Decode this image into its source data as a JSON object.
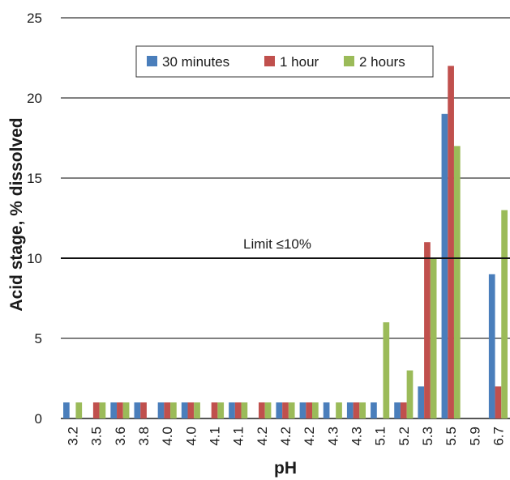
{
  "chart_data": {
    "type": "bar",
    "title": "",
    "xlabel": "pH",
    "ylabel": "Acid stage, % dissolved",
    "ylim": [
      0,
      25
    ],
    "yticks": [
      0,
      5,
      10,
      15,
      20,
      25
    ],
    "grid": true,
    "legend_position": "top-right",
    "categories": [
      "3.2",
      "3.5",
      "3.6",
      "3.8",
      "4.0",
      "4.0",
      "4.1",
      "4.1",
      "4.2",
      "4.2",
      "4.2",
      "4.3",
      "4.3",
      "5.1",
      "5.2",
      "5.3",
      "5.5",
      "5.9",
      "6.7"
    ],
    "series": [
      {
        "name": "30 minutes",
        "color": "#4a7ebb",
        "values": [
          1,
          0,
          1,
          1,
          1,
          1,
          0,
          1,
          0,
          1,
          1,
          1,
          1,
          1,
          1,
          2,
          19,
          0,
          9
        ]
      },
      {
        "name": "1 hour",
        "color": "#c0504d",
        "values": [
          0,
          1,
          1,
          1,
          1,
          1,
          1,
          1,
          1,
          1,
          1,
          0,
          1,
          0,
          1,
          11,
          22,
          0,
          2
        ]
      },
      {
        "name": "2 hours",
        "color": "#9bbb59",
        "values": [
          1,
          1,
          1,
          0,
          1,
          1,
          1,
          1,
          1,
          1,
          1,
          1,
          1,
          6,
          3,
          10,
          17,
          0,
          13
        ]
      }
    ],
    "reference_line": {
      "value": 10,
      "label": "Limit ≤10%"
    }
  }
}
